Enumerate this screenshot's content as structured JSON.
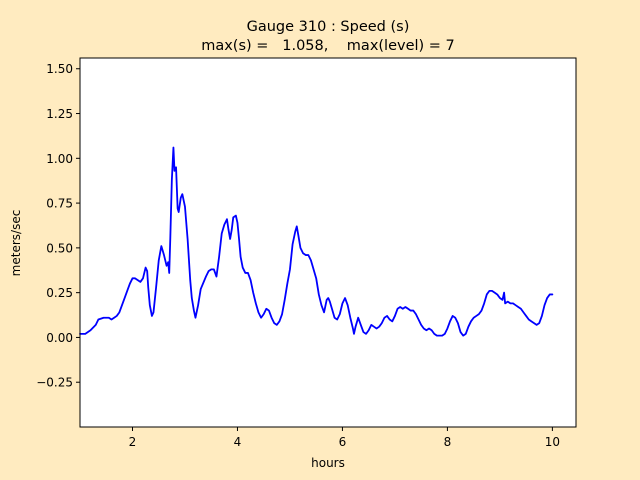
{
  "chart_data": {
    "type": "line",
    "title": "Gauge 310 : Speed (s)",
    "subtitle": "max(s) =   1.058,    max(level) = 7",
    "xlabel": "hours",
    "ylabel": "meters/sec",
    "xlim": [
      1.0,
      10.45
    ],
    "ylim": [
      -0.5,
      1.56
    ],
    "xticks": [
      2,
      4,
      6,
      8,
      10
    ],
    "xtick_labels": [
      "2",
      "4",
      "6",
      "8",
      "10"
    ],
    "yticks": [
      -0.25,
      0.0,
      0.25,
      0.5,
      0.75,
      1.0,
      1.25,
      1.5
    ],
    "ytick_labels": [
      "−0.25",
      "0.00",
      "0.25",
      "0.50",
      "0.75",
      "1.00",
      "1.25",
      "1.50"
    ],
    "grid": false,
    "background": "#ffebc0",
    "plot_background": "#ffffff",
    "series": [
      {
        "color": "#0000ff",
        "points": [
          [
            1.0,
            0.02
          ],
          [
            1.1,
            0.02
          ],
          [
            1.2,
            0.04
          ],
          [
            1.3,
            0.07
          ],
          [
            1.35,
            0.1
          ],
          [
            1.45,
            0.11
          ],
          [
            1.55,
            0.11
          ],
          [
            1.6,
            0.1
          ],
          [
            1.65,
            0.11
          ],
          [
            1.7,
            0.12
          ],
          [
            1.75,
            0.14
          ],
          [
            1.8,
            0.18
          ],
          [
            1.85,
            0.22
          ],
          [
            1.9,
            0.26
          ],
          [
            1.95,
            0.3
          ],
          [
            2.0,
            0.33
          ],
          [
            2.05,
            0.33
          ],
          [
            2.1,
            0.32
          ],
          [
            2.15,
            0.31
          ],
          [
            2.2,
            0.33
          ],
          [
            2.25,
            0.39
          ],
          [
            2.28,
            0.37
          ],
          [
            2.3,
            0.28
          ],
          [
            2.33,
            0.18
          ],
          [
            2.37,
            0.12
          ],
          [
            2.4,
            0.14
          ],
          [
            2.45,
            0.28
          ],
          [
            2.5,
            0.43
          ],
          [
            2.55,
            0.51
          ],
          [
            2.6,
            0.46
          ],
          [
            2.65,
            0.4
          ],
          [
            2.68,
            0.42
          ],
          [
            2.7,
            0.36
          ],
          [
            2.72,
            0.55
          ],
          [
            2.75,
            0.88
          ],
          [
            2.78,
            1.06
          ],
          [
            2.8,
            0.93
          ],
          [
            2.83,
            0.95
          ],
          [
            2.86,
            0.72
          ],
          [
            2.88,
            0.7
          ],
          [
            2.92,
            0.78
          ],
          [
            2.95,
            0.8
          ],
          [
            3.0,
            0.73
          ],
          [
            3.05,
            0.55
          ],
          [
            3.1,
            0.32
          ],
          [
            3.13,
            0.22
          ],
          [
            3.17,
            0.15
          ],
          [
            3.2,
            0.11
          ],
          [
            3.25,
            0.18
          ],
          [
            3.3,
            0.27
          ],
          [
            3.4,
            0.34
          ],
          [
            3.45,
            0.37
          ],
          [
            3.5,
            0.38
          ],
          [
            3.55,
            0.38
          ],
          [
            3.6,
            0.34
          ],
          [
            3.65,
            0.45
          ],
          [
            3.7,
            0.58
          ],
          [
            3.75,
            0.63
          ],
          [
            3.8,
            0.66
          ],
          [
            3.83,
            0.6
          ],
          [
            3.86,
            0.55
          ],
          [
            3.89,
            0.6
          ],
          [
            3.92,
            0.67
          ],
          [
            3.97,
            0.68
          ],
          [
            4.0,
            0.64
          ],
          [
            4.03,
            0.55
          ],
          [
            4.06,
            0.45
          ],
          [
            4.1,
            0.39
          ],
          [
            4.15,
            0.36
          ],
          [
            4.2,
            0.36
          ],
          [
            4.25,
            0.32
          ],
          [
            4.3,
            0.25
          ],
          [
            4.35,
            0.19
          ],
          [
            4.4,
            0.14
          ],
          [
            4.45,
            0.11
          ],
          [
            4.5,
            0.13
          ],
          [
            4.55,
            0.16
          ],
          [
            4.6,
            0.15
          ],
          [
            4.65,
            0.11
          ],
          [
            4.7,
            0.08
          ],
          [
            4.75,
            0.07
          ],
          [
            4.8,
            0.09
          ],
          [
            4.85,
            0.13
          ],
          [
            4.9,
            0.21
          ],
          [
            4.95,
            0.3
          ],
          [
            5.0,
            0.38
          ],
          [
            5.05,
            0.52
          ],
          [
            5.1,
            0.59
          ],
          [
            5.13,
            0.62
          ],
          [
            5.16,
            0.57
          ],
          [
            5.2,
            0.5
          ],
          [
            5.25,
            0.47
          ],
          [
            5.3,
            0.46
          ],
          [
            5.35,
            0.46
          ],
          [
            5.4,
            0.43
          ],
          [
            5.45,
            0.38
          ],
          [
            5.5,
            0.33
          ],
          [
            5.55,
            0.24
          ],
          [
            5.6,
            0.18
          ],
          [
            5.65,
            0.14
          ],
          [
            5.7,
            0.21
          ],
          [
            5.73,
            0.22
          ],
          [
            5.76,
            0.2
          ],
          [
            5.8,
            0.16
          ],
          [
            5.85,
            0.11
          ],
          [
            5.9,
            0.1
          ],
          [
            5.95,
            0.13
          ],
          [
            6.0,
            0.19
          ],
          [
            6.05,
            0.22
          ],
          [
            6.1,
            0.18
          ],
          [
            6.15,
            0.11
          ],
          [
            6.2,
            0.05
          ],
          [
            6.22,
            0.02
          ],
          [
            6.25,
            0.06
          ],
          [
            6.3,
            0.11
          ],
          [
            6.35,
            0.07
          ],
          [
            6.4,
            0.03
          ],
          [
            6.45,
            0.02
          ],
          [
            6.5,
            0.04
          ],
          [
            6.55,
            0.07
          ],
          [
            6.6,
            0.06
          ],
          [
            6.65,
            0.05
          ],
          [
            6.7,
            0.06
          ],
          [
            6.75,
            0.08
          ],
          [
            6.8,
            0.11
          ],
          [
            6.85,
            0.12
          ],
          [
            6.9,
            0.1
          ],
          [
            6.95,
            0.09
          ],
          [
            7.0,
            0.12
          ],
          [
            7.05,
            0.16
          ],
          [
            7.1,
            0.17
          ],
          [
            7.15,
            0.16
          ],
          [
            7.2,
            0.17
          ],
          [
            7.25,
            0.16
          ],
          [
            7.3,
            0.15
          ],
          [
            7.35,
            0.15
          ],
          [
            7.4,
            0.13
          ],
          [
            7.45,
            0.1
          ],
          [
            7.5,
            0.07
          ],
          [
            7.55,
            0.05
          ],
          [
            7.6,
            0.04
          ],
          [
            7.65,
            0.05
          ],
          [
            7.7,
            0.04
          ],
          [
            7.75,
            0.02
          ],
          [
            7.8,
            0.01
          ],
          [
            7.85,
            0.01
          ],
          [
            7.9,
            0.01
          ],
          [
            7.95,
            0.02
          ],
          [
            8.0,
            0.05
          ],
          [
            8.05,
            0.09
          ],
          [
            8.1,
            0.12
          ],
          [
            8.15,
            0.11
          ],
          [
            8.2,
            0.08
          ],
          [
            8.25,
            0.03
          ],
          [
            8.3,
            0.01
          ],
          [
            8.35,
            0.02
          ],
          [
            8.4,
            0.06
          ],
          [
            8.45,
            0.09
          ],
          [
            8.5,
            0.11
          ],
          [
            8.55,
            0.12
          ],
          [
            8.6,
            0.13
          ],
          [
            8.65,
            0.15
          ],
          [
            8.7,
            0.19
          ],
          [
            8.75,
            0.24
          ],
          [
            8.8,
            0.26
          ],
          [
            8.85,
            0.26
          ],
          [
            8.9,
            0.25
          ],
          [
            8.95,
            0.24
          ],
          [
            9.0,
            0.22
          ],
          [
            9.05,
            0.21
          ],
          [
            9.08,
            0.25
          ],
          [
            9.1,
            0.19
          ],
          [
            9.15,
            0.2
          ],
          [
            9.2,
            0.19
          ],
          [
            9.25,
            0.19
          ],
          [
            9.3,
            0.18
          ],
          [
            9.35,
            0.17
          ],
          [
            9.4,
            0.16
          ],
          [
            9.45,
            0.14
          ],
          [
            9.5,
            0.12
          ],
          [
            9.55,
            0.1
          ],
          [
            9.6,
            0.09
          ],
          [
            9.65,
            0.08
          ],
          [
            9.7,
            0.07
          ],
          [
            9.75,
            0.08
          ],
          [
            9.8,
            0.12
          ],
          [
            9.85,
            0.18
          ],
          [
            9.9,
            0.22
          ],
          [
            9.95,
            0.24
          ],
          [
            10.0,
            0.24
          ]
        ]
      }
    ]
  }
}
